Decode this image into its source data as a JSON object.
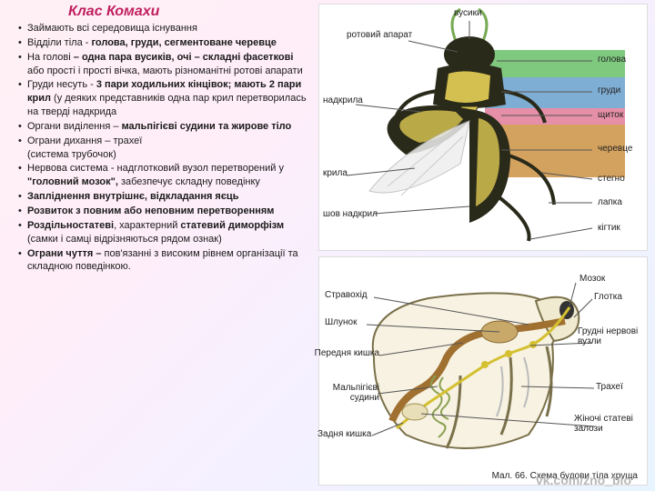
{
  "title": "Клас Комахи",
  "footer": "vk.com/zno_bio",
  "bullets": [
    {
      "text": "Займають всі середовища існування"
    },
    {
      "text": "Відділи тіла - <b>голова, груди, сегментоване черевце</b>"
    },
    {
      "text": " На голові <b>– одна пара вусиків,  очі – складні фасеткові</b>  або прості і прості вічка, мають різноманітні ротові апарати"
    },
    {
      "text": " Груди несуть - <b>3 пари  ходильних кінцівок; мають 2 пари крил</b> (у деяких представників  одна пар крил перетворилась на  тверді надкрида"
    },
    {
      "text": " Органи виділення – <b>мальпігієві судини та жирове тіло</b>"
    },
    {
      "text": " Ограни дихання – трахеї<br> (система трубочок)"
    },
    {
      "text": " Нервова система - надглотковий вузол перетворений у <b>\"головний мозок\",</b> забезпечує складну поведінку"
    },
    {
      "text": " <b>Запліднення  внутрішнє, відкладання яєць</b>"
    },
    {
      "text": " <b>Розвиток з повним або неповним перетворенням</b>"
    },
    {
      "text": " <b>Роздільностатеві</b>, характерний <b>статевий диморфізм</b> (самки і самці відрізняються рядом ознак)"
    },
    {
      "text": " <b>Ограни чуття –</b> пов'язанні з високим рівнем організації та складною поведінкою."
    }
  ],
  "top_diagram": {
    "labels_top": {
      "antennae": "вусики",
      "mouth": "ротовий апарат",
      "elytra": "надкрила",
      "wings": "крила",
      "seam": "шов надкрил"
    },
    "labels_right": {
      "head": "голова",
      "thorax": "груди",
      "scutellum": "щиток",
      "abdomen": "черевце",
      "femur": "стегно",
      "tarsus": "лапка",
      "claw": "кігтик"
    },
    "colors": {
      "head": "#7fc97f",
      "thorax": "#7faed4",
      "scutellum": "#e58fa8",
      "abdomen": "#d4a25f"
    }
  },
  "bottom_diagram": {
    "labels_left": {
      "esophagus": "Стравохід",
      "stomach": "Шлунок",
      "foregut": "Передня кишка",
      "malpighian": "Мальпігієві судини",
      "hindgut": "Задня кишка"
    },
    "labels_right": {
      "brain": "Мозок",
      "pharynx": "Глотка",
      "ganglia": "Грудні нервові вузли",
      "tracheae": "Трахеї",
      "gonads": "Жіночі статеві залози"
    },
    "caption": "Мал. 66. Схема будови тіла хруща"
  }
}
